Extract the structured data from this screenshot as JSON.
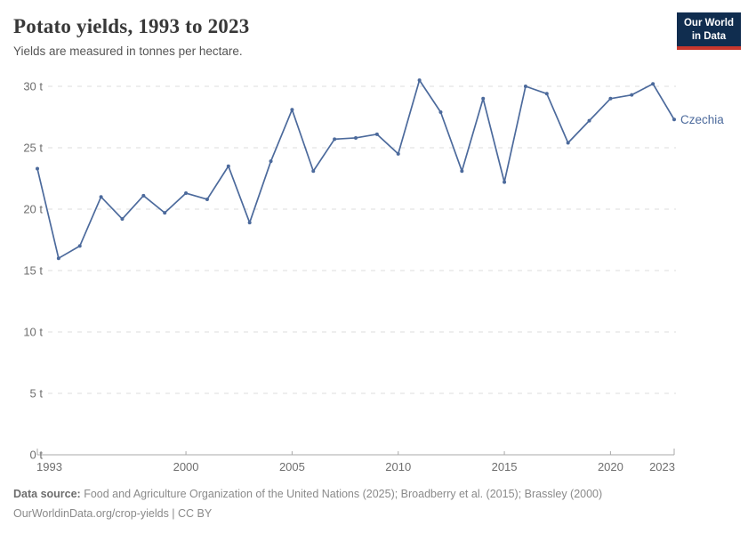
{
  "header": {
    "title": "Potato yields, 1993 to 2023",
    "subtitle": "Yields are measured in tonnes per hectare.",
    "logo": {
      "line1": "Our World",
      "line2": "in Data",
      "background_color": "#102D4F",
      "accent_color": "#C8372D"
    }
  },
  "chart_data": {
    "type": "line",
    "title": "Potato yields, 1993 to 2023",
    "subtitle": "Yields are measured in tonnes per hectare.",
    "xlabel": "",
    "ylabel": "",
    "xlim": [
      1993,
      2023
    ],
    "ylim": [
      0,
      30
    ],
    "grid": "horizontal-dashed",
    "legend_position": "end-of-line-label",
    "x_ticks": [
      1993,
      2000,
      2005,
      2010,
      2015,
      2020,
      2023
    ],
    "y_ticks": [
      0,
      5,
      10,
      15,
      20,
      25,
      30
    ],
    "y_tick_suffix": " t",
    "x": [
      1993,
      1994,
      1995,
      1996,
      1997,
      1998,
      1999,
      2000,
      2001,
      2002,
      2003,
      2004,
      2005,
      2006,
      2007,
      2008,
      2009,
      2010,
      2011,
      2012,
      2013,
      2014,
      2015,
      2016,
      2017,
      2018,
      2019,
      2020,
      2021,
      2022,
      2023
    ],
    "series": [
      {
        "name": "Czechia",
        "color": "#4C6A9C",
        "values": [
          23.3,
          16.0,
          17.0,
          21.0,
          19.2,
          21.1,
          19.7,
          21.3,
          20.8,
          23.5,
          18.9,
          23.9,
          28.1,
          23.1,
          25.7,
          25.8,
          26.1,
          24.5,
          30.5,
          27.9,
          23.1,
          29.0,
          22.2,
          30.0,
          29.4,
          25.4,
          27.2,
          29.0,
          29.3,
          30.2,
          27.3
        ]
      }
    ],
    "axis_color": "#a9a9a9",
    "gridline_color": "#dcdcdc"
  },
  "footer": {
    "datasource_label": "Data source:",
    "datasource_text": "Food and Agriculture Organization of the United Nations (2025); Broadberry et al. (2015); Brassley (2000)",
    "link_line": "OurWorldinData.org/crop-yields | CC BY"
  }
}
